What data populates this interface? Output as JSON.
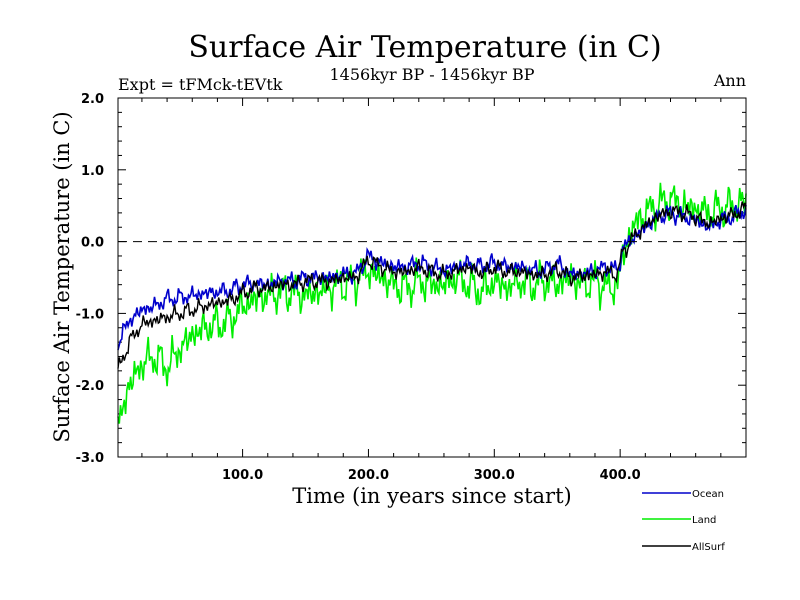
{
  "chart_data": {
    "type": "line",
    "title": "Surface Air Temperature (in C)",
    "subtitle_left": "Expt = tFMck-tEVtk",
    "subtitle_center": "1456kyr BP - 1456kyr BP",
    "subtitle_right": "Ann",
    "xlabel": "Time (in years since start)",
    "ylabel": "Surface Air Temperature (in C)",
    "xlim": [
      1,
      500
    ],
    "ylim": [
      -3.0,
      2.0
    ],
    "xticks": [
      100,
      200,
      300,
      400
    ],
    "xtick_labels": [
      "100.0",
      "200.0",
      "300.0",
      "400.0"
    ],
    "yticks": [
      -3.0,
      -2.0,
      -1.0,
      0.0,
      1.0,
      2.0
    ],
    "ytick_labels": [
      "-3.0",
      "-2.0",
      "-1.0",
      "0.0",
      "1.0",
      "2.0"
    ],
    "reference_line": {
      "y": 0.0,
      "style": "dashed"
    },
    "series": [
      {
        "name": "Ocean",
        "color": "#0000cc",
        "x": [
          1,
          10,
          20,
          30,
          40,
          50,
          60,
          70,
          80,
          90,
          100,
          110,
          120,
          130,
          140,
          150,
          160,
          170,
          180,
          190,
          200,
          210,
          220,
          230,
          240,
          250,
          260,
          270,
          280,
          290,
          300,
          310,
          320,
          330,
          340,
          350,
          360,
          370,
          380,
          390,
          398,
          402,
          410,
          420,
          430,
          440,
          450,
          460,
          470,
          480,
          490,
          500
        ],
        "values": [
          -1.4,
          -1.1,
          -0.95,
          -0.9,
          -0.8,
          -0.78,
          -0.75,
          -0.72,
          -0.7,
          -0.68,
          -0.6,
          -0.58,
          -0.6,
          -0.55,
          -0.55,
          -0.5,
          -0.5,
          -0.5,
          -0.45,
          -0.45,
          -0.2,
          -0.3,
          -0.35,
          -0.35,
          -0.3,
          -0.35,
          -0.4,
          -0.35,
          -0.3,
          -0.35,
          -0.3,
          -0.35,
          -0.35,
          -0.4,
          -0.4,
          -0.3,
          -0.45,
          -0.45,
          -0.4,
          -0.35,
          -0.4,
          -0.1,
          0.05,
          0.2,
          0.35,
          0.4,
          0.35,
          0.3,
          0.2,
          0.3,
          0.35,
          0.45
        ]
      },
      {
        "name": "Land",
        "color": "#00ee00",
        "x": [
          1,
          5,
          10,
          20,
          30,
          40,
          50,
          60,
          70,
          80,
          90,
          100,
          110,
          120,
          130,
          140,
          150,
          160,
          170,
          180,
          190,
          200,
          210,
          220,
          230,
          240,
          250,
          260,
          270,
          280,
          290,
          300,
          310,
          320,
          330,
          340,
          350,
          360,
          370,
          380,
          390,
          398,
          402,
          410,
          420,
          430,
          440,
          450,
          460,
          470,
          480,
          490,
          500
        ],
        "values": [
          -2.5,
          -2.3,
          -2.0,
          -1.7,
          -1.6,
          -1.75,
          -1.5,
          -1.3,
          -1.2,
          -1.15,
          -1.1,
          -0.9,
          -0.8,
          -0.75,
          -0.7,
          -0.7,
          -0.75,
          -0.7,
          -0.65,
          -0.6,
          -0.55,
          -0.4,
          -0.5,
          -0.6,
          -0.65,
          -0.55,
          -0.6,
          -0.6,
          -0.5,
          -0.6,
          -0.7,
          -0.55,
          -0.65,
          -0.55,
          -0.6,
          -0.55,
          -0.6,
          -0.5,
          -0.6,
          -0.55,
          -0.65,
          -0.6,
          -0.2,
          0.2,
          0.4,
          0.5,
          0.6,
          0.5,
          0.45,
          0.4,
          0.45,
          0.5,
          0.55
        ]
      },
      {
        "name": "AllSurf",
        "color": "#000000",
        "x": [
          1,
          10,
          20,
          30,
          40,
          50,
          60,
          70,
          80,
          90,
          100,
          110,
          120,
          130,
          140,
          150,
          160,
          170,
          180,
          190,
          200,
          210,
          220,
          230,
          240,
          250,
          260,
          270,
          280,
          290,
          300,
          310,
          320,
          330,
          340,
          350,
          360,
          370,
          380,
          390,
          398,
          402,
          410,
          420,
          430,
          440,
          450,
          460,
          470,
          480,
          490,
          500
        ],
        "values": [
          -1.8,
          -1.4,
          -1.15,
          -1.1,
          -1.05,
          -1.0,
          -0.95,
          -0.9,
          -0.85,
          -0.82,
          -0.72,
          -0.65,
          -0.65,
          -0.6,
          -0.6,
          -0.55,
          -0.55,
          -0.55,
          -0.5,
          -0.5,
          -0.25,
          -0.35,
          -0.42,
          -0.42,
          -0.36,
          -0.42,
          -0.46,
          -0.4,
          -0.36,
          -0.44,
          -0.36,
          -0.42,
          -0.42,
          -0.46,
          -0.46,
          -0.38,
          -0.5,
          -0.48,
          -0.46,
          -0.42,
          -0.45,
          -0.15,
          0.05,
          0.22,
          0.36,
          0.42,
          0.4,
          0.34,
          0.25,
          0.32,
          0.38,
          0.46
        ]
      }
    ],
    "legend": [
      {
        "label": "Ocean",
        "color": "#0000cc"
      },
      {
        "label": "Land",
        "color": "#00ee00"
      },
      {
        "label": "AllSurf",
        "color": "#000000"
      }
    ]
  }
}
